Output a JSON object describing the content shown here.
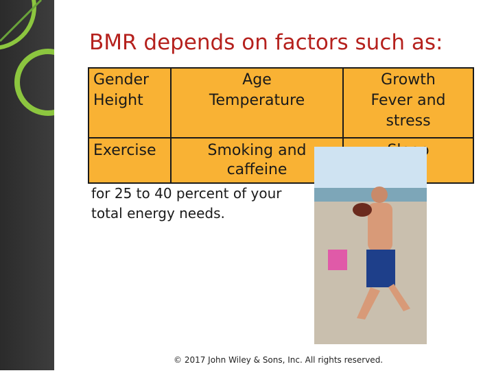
{
  "title": "BMR depends on factors such as:",
  "table": {
    "rows": [
      [
        [
          "Gender",
          "Height"
        ],
        [
          "Age",
          "Temperature"
        ],
        [
          "Growth",
          "Fever and",
          "stress"
        ]
      ],
      [
        [
          "Exercise"
        ],
        [
          "Smoking and",
          "caffeine"
        ],
        [
          "Sleep"
        ]
      ]
    ]
  },
  "note": [
    "for 25 to 40 percent of your",
    "total energy needs."
  ],
  "footer": "© 2017 John Wiley & Sons, Inc. All rights reserved."
}
